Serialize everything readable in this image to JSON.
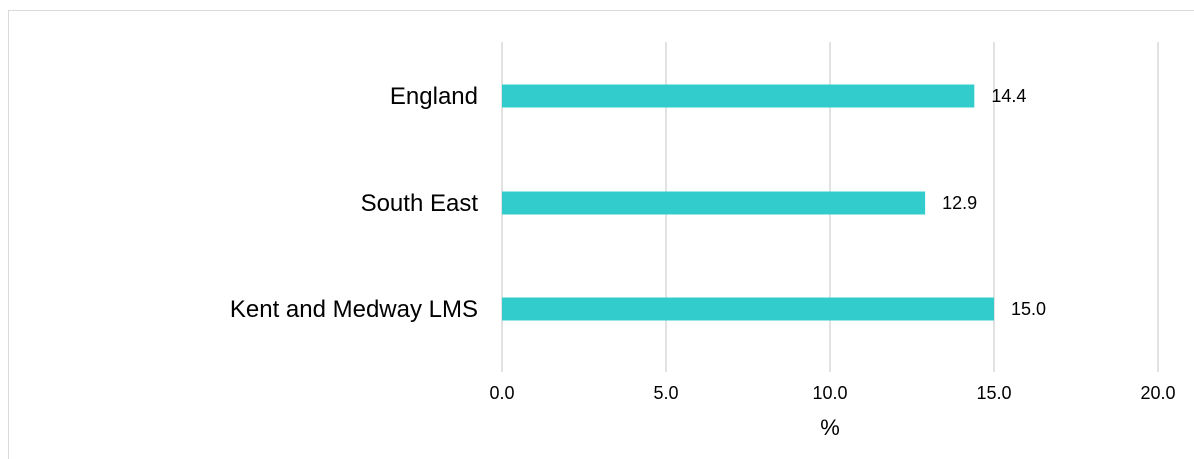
{
  "chart_data": {
    "type": "bar",
    "orientation": "horizontal",
    "categories": [
      "England",
      "South East",
      "Kent and Medway LMS"
    ],
    "values": [
      14.4,
      12.9,
      15.0
    ],
    "value_labels": [
      "14.4",
      "12.9",
      "15.0"
    ],
    "xlabel": "%",
    "xlim": [
      0,
      20
    ],
    "xticks": [
      0,
      5,
      10,
      15,
      20
    ],
    "xtick_labels": [
      "0.0",
      "5.0",
      "10.0",
      "15.0",
      "20.0"
    ],
    "grid": "vertical",
    "legend": "none",
    "bar_color": "#33CCCC",
    "grid_color": "#D9D9D9"
  }
}
